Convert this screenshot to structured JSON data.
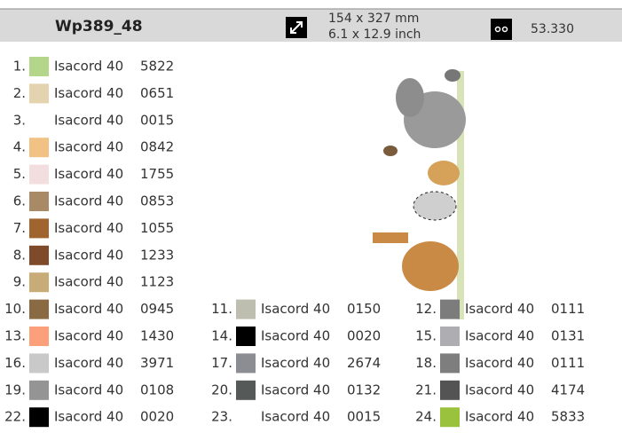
{
  "header": {
    "title": "Wp389_48",
    "size_mm": "154 x 327 mm",
    "size_inch": "6.1 x 12.9 inch",
    "stitches": "53.330"
  },
  "threads": [
    {
      "number": "1.",
      "color": "#b3d68b",
      "brand": "Isacord 40",
      "code": "5822"
    },
    {
      "number": "2.",
      "color": "#e3d3ae",
      "brand": "Isacord 40",
      "code": "0651"
    },
    {
      "number": "3.",
      "color": "#ffffff",
      "brand": "Isacord 40",
      "code": "0015"
    },
    {
      "number": "4.",
      "color": "#f2c285",
      "brand": "Isacord 40",
      "code": "0842"
    },
    {
      "number": "5.",
      "color": "#f3dedf",
      "brand": "Isacord 40",
      "code": "1755"
    },
    {
      "number": "6.",
      "color": "#a88a66",
      "brand": "Isacord 40",
      "code": "0853"
    },
    {
      "number": "7.",
      "color": "#a0652f",
      "brand": "Isacord 40",
      "code": "1055"
    },
    {
      "number": "8.",
      "color": "#7f4a2a",
      "brand": "Isacord 40",
      "code": "1233"
    },
    {
      "number": "9.",
      "color": "#c8ac78",
      "brand": "Isacord 40",
      "code": "1123"
    },
    {
      "number": "10.",
      "color": "#8a6a42",
      "brand": "Isacord 40",
      "code": "0945"
    },
    {
      "number": "11.",
      "color": "#bdbdb0",
      "brand": "Isacord 40",
      "code": "0150"
    },
    {
      "number": "12.",
      "color": "#7c7c7c",
      "brand": "Isacord 40",
      "code": "0111"
    },
    {
      "number": "13.",
      "color": "#fba07a",
      "brand": "Isacord 40",
      "code": "1430"
    },
    {
      "number": "14.",
      "color": "#000000",
      "brand": "Isacord 40",
      "code": "0020"
    },
    {
      "number": "15.",
      "color": "#aeaeb2",
      "brand": "Isacord 40",
      "code": "0131"
    },
    {
      "number": "16.",
      "color": "#c9c9c9",
      "brand": "Isacord 40",
      "code": "3971"
    },
    {
      "number": "17.",
      "color": "#8c8c93",
      "brand": "Isacord 40",
      "code": "2674"
    },
    {
      "number": "18.",
      "color": "#7e7e7e",
      "brand": "Isacord 40",
      "code": "0111"
    },
    {
      "number": "19.",
      "color": "#949494",
      "brand": "Isacord 40",
      "code": "0108"
    },
    {
      "number": "20.",
      "color": "#555a58",
      "brand": "Isacord 40",
      "code": "0132"
    },
    {
      "number": "21.",
      "color": "#545454",
      "brand": "Isacord 40",
      "code": "4174"
    },
    {
      "number": "22.",
      "color": "#000000",
      "brand": "Isacord 40",
      "code": "0020"
    },
    {
      "number": "23.",
      "color": "#ffffff",
      "brand": "Isacord 40",
      "code": "0015"
    },
    {
      "number": "24.",
      "color": "#9ac23c",
      "brand": "Isacord 40",
      "code": "5833"
    }
  ]
}
